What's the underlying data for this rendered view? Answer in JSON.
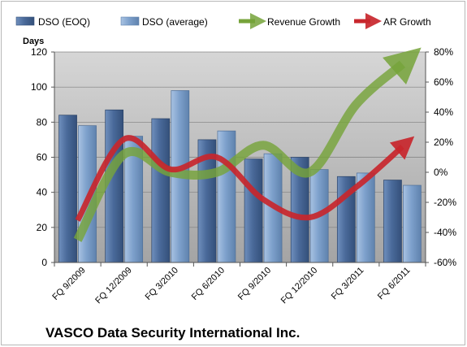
{
  "chart_data": {
    "type": "bar",
    "title": "VASCO Data Security International Inc.",
    "ylabel": "Days",
    "ylim": [
      0,
      120
    ],
    "yticks": [
      "0",
      "20",
      "40",
      "60",
      "80",
      "100",
      "120"
    ],
    "y2lim": [
      -60,
      80
    ],
    "y2ticks": [
      "-60%",
      "-40%",
      "-20%",
      "0%",
      "20%",
      "40%",
      "60%",
      "80%"
    ],
    "categories": [
      "FQ 9/2009",
      "FQ 12/2009",
      "FQ 3/2010",
      "FQ 6/2010",
      "FQ 9/2010",
      "FQ 12/2010",
      "FQ 3/2011",
      "FQ 6/2011"
    ],
    "series": [
      {
        "name": "DSO (EOQ)",
        "type": "bar",
        "axis": "left",
        "values": [
          84,
          87,
          82,
          70,
          59,
          60,
          49,
          47
        ],
        "color": "#4a6a9a"
      },
      {
        "name": "DSO (average)",
        "type": "bar",
        "axis": "left",
        "values": [
          78,
          72,
          98,
          75,
          62,
          53,
          51,
          44
        ],
        "color": "#7ea1cc"
      },
      {
        "name": "Revenue Growth",
        "type": "line",
        "axis": "right",
        "values": [
          -45,
          12,
          0,
          0,
          18,
          0,
          45,
          72
        ],
        "color": "#76a33a"
      },
      {
        "name": "AR Growth",
        "type": "line",
        "axis": "right",
        "values": [
          -32,
          22,
          2,
          10,
          -18,
          -30,
          -10,
          17
        ],
        "color": "#c8262c"
      }
    ],
    "grid": true,
    "legend_position": "top"
  }
}
